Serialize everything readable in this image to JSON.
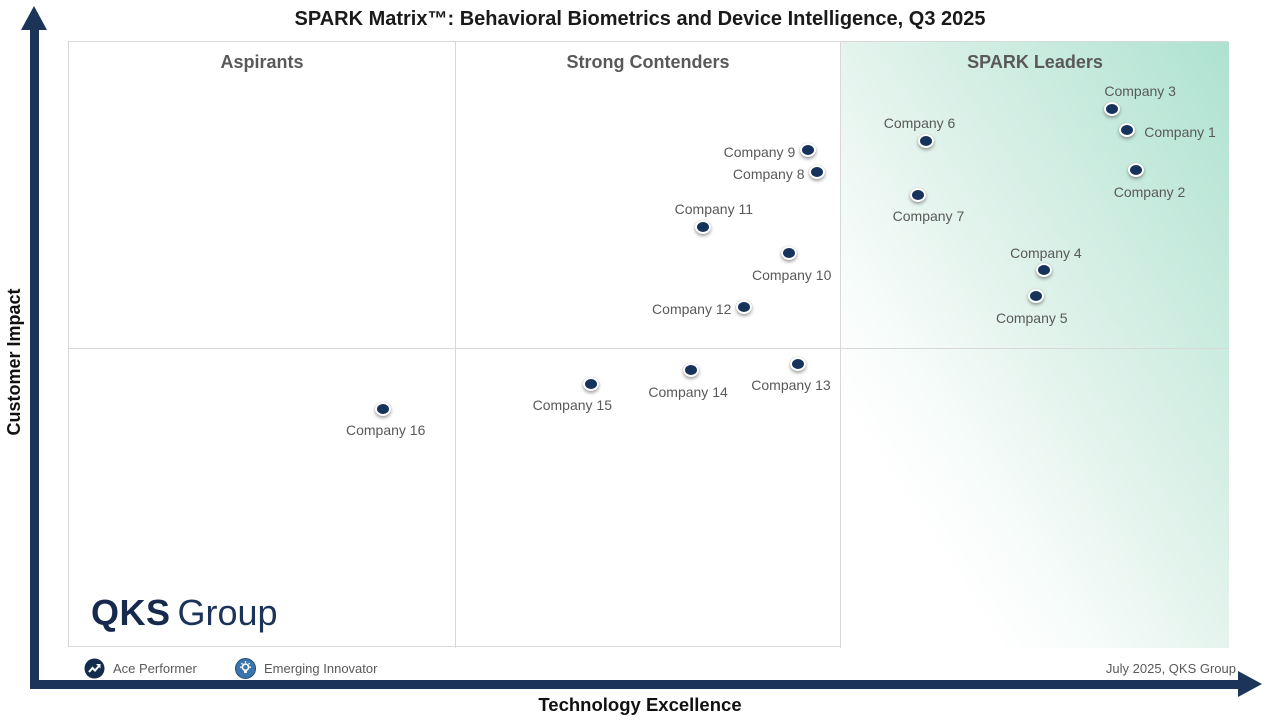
{
  "title": "SPARK Matrix™: Behavioral Biometrics and Device Intelligence, Q3 2025",
  "axes": {
    "x": "Technology Excellence",
    "y": "Customer Impact"
  },
  "legend": [
    {
      "label": "Ace Performer",
      "icon": "trend-up-icon"
    },
    {
      "label": "Emerging Innovator",
      "icon": "lightbulb-icon"
    }
  ],
  "footer": "July 2025, QKS Group",
  "logo": {
    "bold": "QKS",
    "regular": "Group"
  },
  "colors": {
    "axis_navy": "#1c3457",
    "dot_navy": "#16335b",
    "label_gray": "#595959",
    "leaders_green": "#aee2d0",
    "innovator_blue": "#3c74ad"
  },
  "chart_data": {
    "type": "scatter",
    "title": "SPARK Matrix™: Behavioral Biometrics and Device Intelligence, Q3 2025",
    "xlabel": "Technology Excellence",
    "ylabel": "Customer Impact",
    "quadrants": [
      "Aspirants",
      "Strong Contenders",
      "SPARK Leaders"
    ],
    "axes_note": "No numeric ticks shown; x_pct/y_pct are percent of plot area, y measured from bottom",
    "points": [
      {
        "name": "Company 1",
        "x_pct": 91.4,
        "y_pct": 85.1,
        "label_pos": "right"
      },
      {
        "name": "Company 2",
        "x_pct": 92.2,
        "y_pct": 78.4,
        "label_pos": "below",
        "label_dx": 11
      },
      {
        "name": "Company 3",
        "x_pct": 90.1,
        "y_pct": 88.6,
        "label_pos": "above",
        "label_dx": 26
      },
      {
        "name": "Company 4",
        "x_pct": 84.3,
        "y_pct": 61.9,
        "label_pos": "above",
        "label_dx": -1
      },
      {
        "name": "Company 5",
        "x_pct": 83.6,
        "y_pct": 57.6,
        "label_pos": "below",
        "label_dx": -7
      },
      {
        "name": "Company 6",
        "x_pct": 74.1,
        "y_pct": 83.3,
        "label_pos": "above",
        "label_dx": -9
      },
      {
        "name": "Company 7",
        "x_pct": 73.4,
        "y_pct": 74.4,
        "label_pos": "below",
        "label_dx": 8
      },
      {
        "name": "Company 8",
        "x_pct": 64.7,
        "y_pct": 78.2,
        "label_pos": "left"
      },
      {
        "name": "Company 9",
        "x_pct": 63.9,
        "y_pct": 81.8,
        "label_pos": "left"
      },
      {
        "name": "Company 10",
        "x_pct": 62.3,
        "y_pct": 64.7,
        "label_pos": "below"
      },
      {
        "name": "Company 11",
        "x_pct": 54.9,
        "y_pct": 69.1,
        "label_pos": "above",
        "label_dx": 8
      },
      {
        "name": "Company 12",
        "x_pct": 58.4,
        "y_pct": 55.9,
        "label_pos": "left"
      },
      {
        "name": "Company 13",
        "x_pct": 63.1,
        "y_pct": 46.5,
        "label_pos": "below",
        "label_dx": -10
      },
      {
        "name": "Company 14",
        "x_pct": 53.8,
        "y_pct": 45.4,
        "label_pos": "below",
        "label_dx": -5
      },
      {
        "name": "Company 15",
        "x_pct": 45.2,
        "y_pct": 43.2,
        "label_pos": "below",
        "label_dx": -21
      },
      {
        "name": "Company 16",
        "x_pct": 27.3,
        "y_pct": 39.1,
        "label_pos": "below"
      }
    ]
  }
}
